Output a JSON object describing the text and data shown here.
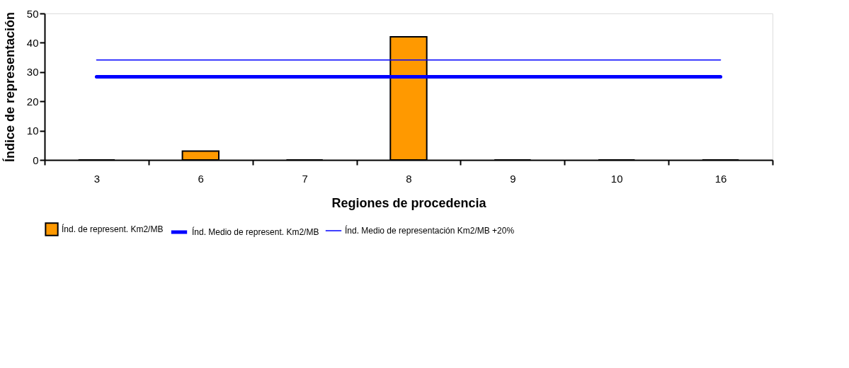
{
  "chart_data": {
    "type": "bar",
    "xlabel": "Regiones de procedencia",
    "ylabel": "Índice de representación",
    "categories": [
      "3",
      "6",
      "7",
      "8",
      "9",
      "10",
      "16"
    ],
    "series": [
      {
        "name": "Índ. de represent. Km2/MB",
        "color": "#ff9900",
        "values": [
          0,
          3,
          0,
          42,
          0,
          0,
          0
        ]
      },
      {
        "name": "Índ. Medio de represent. Km2/MB",
        "type": "line",
        "color": "#0000ff",
        "values": [
          28.4,
          28.4,
          28.4,
          28.4,
          28.4,
          28.4,
          28.4
        ]
      },
      {
        "name": "Índ. Medio de representación Km2/MB +20%",
        "type": "line",
        "color": "#0000ff",
        "values": [
          34.1,
          34.1,
          34.1,
          34.1,
          34.1,
          34.1,
          34.1
        ]
      }
    ],
    "ylim": [
      0,
      50
    ],
    "yticks": [
      0,
      10,
      20,
      30,
      40,
      50
    ],
    "grid": false,
    "legend": "bottom",
    "marker": "none"
  }
}
